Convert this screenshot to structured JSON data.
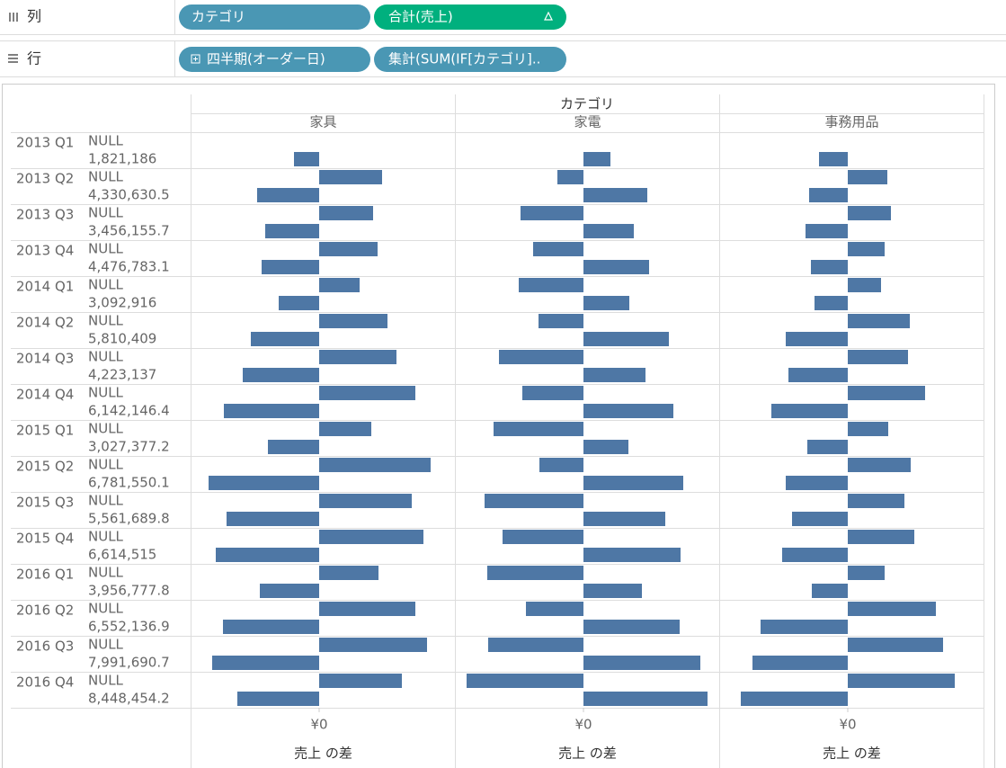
{
  "shelves": {
    "columns": {
      "label": "列",
      "pills": [
        "カテゴリ",
        "合計(売上)"
      ]
    },
    "rows": {
      "label": "行",
      "pills": [
        "四半期(オーダー日)",
        "集計(SUM(IF[カテゴリ].."
      ]
    }
  },
  "chart_data": {
    "type": "bar",
    "orientation": "horizontal",
    "header": "カテゴリ",
    "quarters": [
      "2013 Q1",
      "2013 Q2",
      "2013 Q3",
      "2013 Q4",
      "2014 Q1",
      "2014 Q2",
      "2014 Q3",
      "2014 Q4",
      "2015 Q1",
      "2015 Q2",
      "2015 Q3",
      "2015 Q4",
      "2016 Q1",
      "2016 Q2",
      "2016 Q3",
      "2016 Q4"
    ],
    "row_labels": [
      "NULL",
      "1,821,186",
      "NULL",
      "4,330,630.5",
      "NULL",
      "3,456,155.7",
      "NULL",
      "4,476,783.1",
      "NULL",
      "3,092,916",
      "NULL",
      "5,810,409",
      "NULL",
      "4,223,137",
      "NULL",
      "6,142,146.4",
      "NULL",
      "3,027,377.2",
      "NULL",
      "6,781,550.1",
      "NULL",
      "5,561,689.8",
      "NULL",
      "6,614,515",
      "NULL",
      "3,956,777.8",
      "NULL",
      "6,552,136.9",
      "NULL",
      "7,991,690.7",
      "NULL",
      "8,448,454.2"
    ],
    "color": "#4e77a5",
    "series": [
      {
        "name": "家具",
        "values": [
          null,
          -28,
          70,
          -69,
          60,
          -60,
          65,
          -64,
          45,
          -45,
          76,
          -76,
          86,
          -85,
          107,
          -106,
          58,
          -57,
          124,
          -123,
          103,
          -103,
          116,
          -115,
          66,
          -66,
          107,
          -107,
          120,
          -119,
          92,
          -91
        ]
      },
      {
        "name": "家電",
        "values": [
          null,
          30,
          -29,
          71,
          -70,
          56,
          -56,
          73,
          -72,
          51,
          -50,
          95,
          -94,
          69,
          -68,
          100,
          -100,
          50,
          -49,
          111,
          -110,
          91,
          -90,
          108,
          -107,
          65,
          -64,
          107,
          -106,
          130,
          -130,
          138
        ]
      },
      {
        "name": "事務用品",
        "values": [
          null,
          -32,
          44,
          -43,
          48,
          -47,
          41,
          -41,
          37,
          -37,
          69,
          -69,
          67,
          -66,
          86,
          -85,
          45,
          -45,
          70,
          -69,
          63,
          -62,
          74,
          -73,
          41,
          -40,
          98,
          -97,
          106,
          -106,
          119,
          -119
        ]
      }
    ],
    "xlim": [
      -142,
      151
    ],
    "xticks": [
      {
        "value": 0,
        "label": "¥0"
      }
    ],
    "xlabel": "売上 の差"
  }
}
